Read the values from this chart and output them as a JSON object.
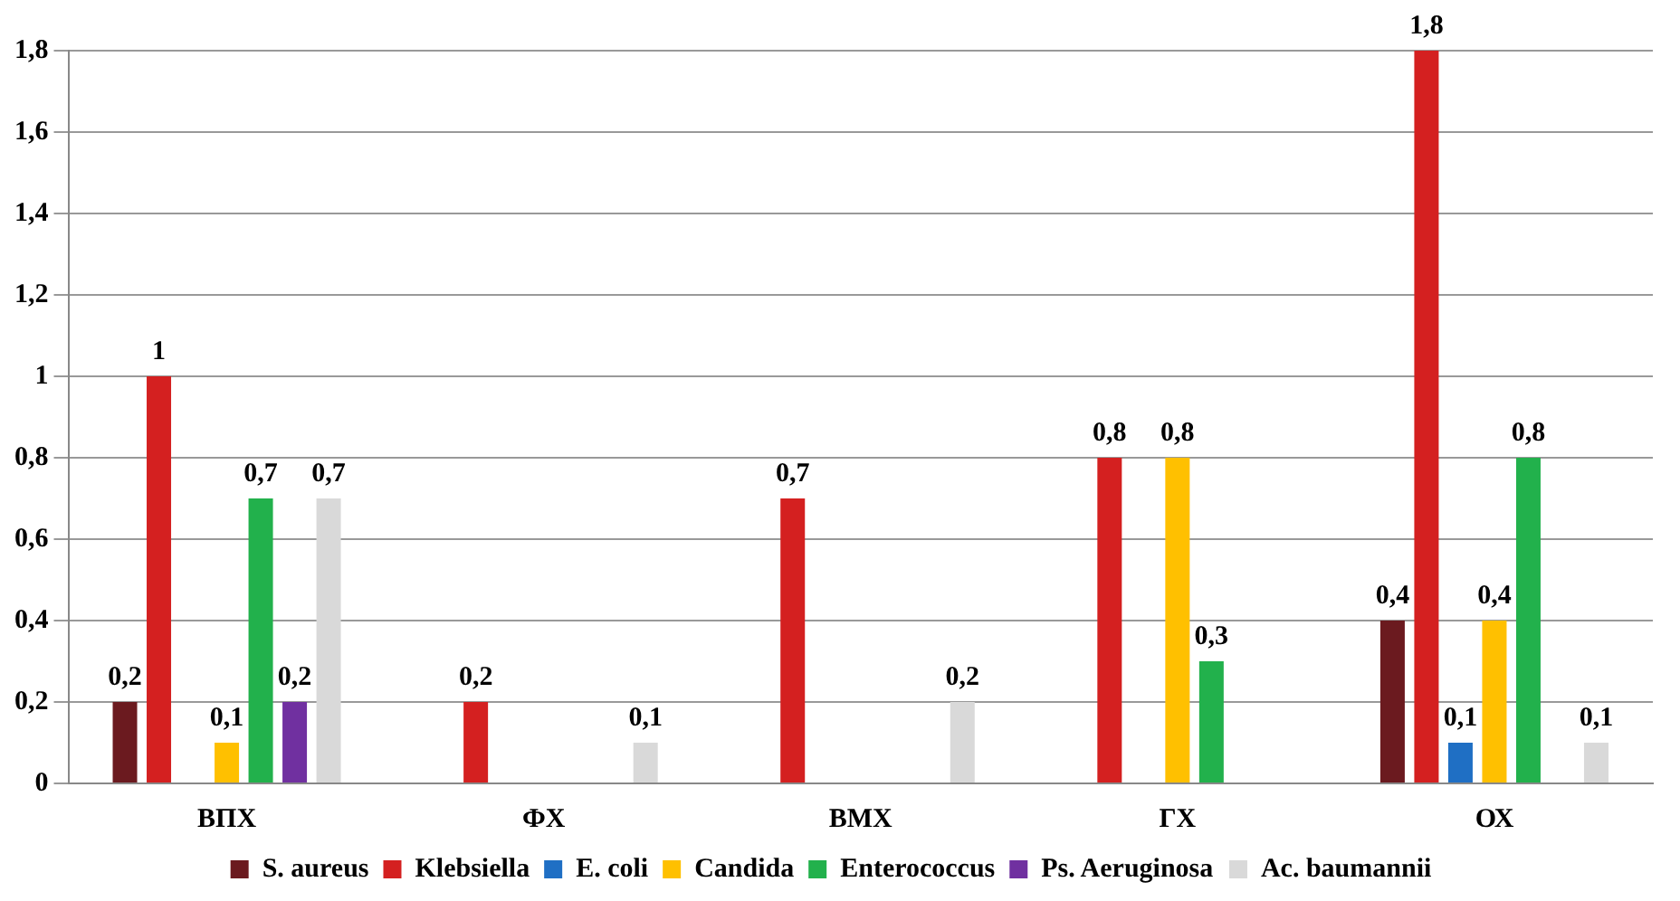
{
  "chart_data": {
    "type": "bar",
    "categories": [
      "ВПХ",
      "ФХ",
      "ВМХ",
      "ГХ",
      "ОХ"
    ],
    "series": [
      {
        "name": "S. aureus",
        "color": "#6b1a1f",
        "values": [
          0.2,
          null,
          null,
          null,
          0.4
        ],
        "value_labels": [
          "0,2",
          null,
          null,
          null,
          "0,4"
        ]
      },
      {
        "name": "Klebsiella",
        "color": "#d42020",
        "values": [
          1,
          0.2,
          0.7,
          0.8,
          1.8
        ],
        "value_labels": [
          "1",
          "0,2",
          "0,7",
          "0,8",
          "1,8"
        ]
      },
      {
        "name": "E. coli",
        "color": "#1f6fc4",
        "values": [
          null,
          null,
          null,
          null,
          0.1
        ],
        "value_labels": [
          null,
          null,
          null,
          null,
          "0,1"
        ]
      },
      {
        "name": "Candida",
        "color": "#ffc000",
        "values": [
          0.1,
          null,
          null,
          0.8,
          0.4
        ],
        "value_labels": [
          "0,1",
          null,
          null,
          "0,8",
          "0,4"
        ]
      },
      {
        "name": "Enterococcus",
        "color": "#22b14c",
        "values": [
          0.7,
          null,
          null,
          0.3,
          0.8
        ],
        "value_labels": [
          "0,7",
          null,
          null,
          "0,3",
          "0,8"
        ]
      },
      {
        "name": "Ps. Aeruginosa",
        "color": "#7030a0",
        "values": [
          0.2,
          null,
          null,
          null,
          null
        ],
        "value_labels": [
          "0,2",
          null,
          null,
          null,
          null
        ]
      },
      {
        "name": "Ac. baumannii",
        "color": "#d9d9d9",
        "values": [
          0.7,
          0.1,
          0.2,
          null,
          0.1
        ],
        "value_labels": [
          "0,7",
          "0,1",
          "0,2",
          null,
          "0,1"
        ]
      }
    ],
    "ylim": [
      0,
      1.8
    ],
    "yticks": [
      0,
      {
        "value": 0.2,
        "label": "0,2"
      },
      {
        "value": 0.4,
        "label": "0,4"
      },
      {
        "value": 0.6,
        "label": "0,6"
      },
      {
        "value": 0.8,
        "label": "0,8"
      },
      1,
      {
        "value": 1.2,
        "label": "1,2"
      },
      {
        "value": 1.4,
        "label": "1,4"
      },
      {
        "value": 1.6,
        "label": "1,6"
      },
      {
        "value": 1.8,
        "label": "1,8"
      }
    ],
    "grid": "y",
    "legend": "bottom"
  }
}
